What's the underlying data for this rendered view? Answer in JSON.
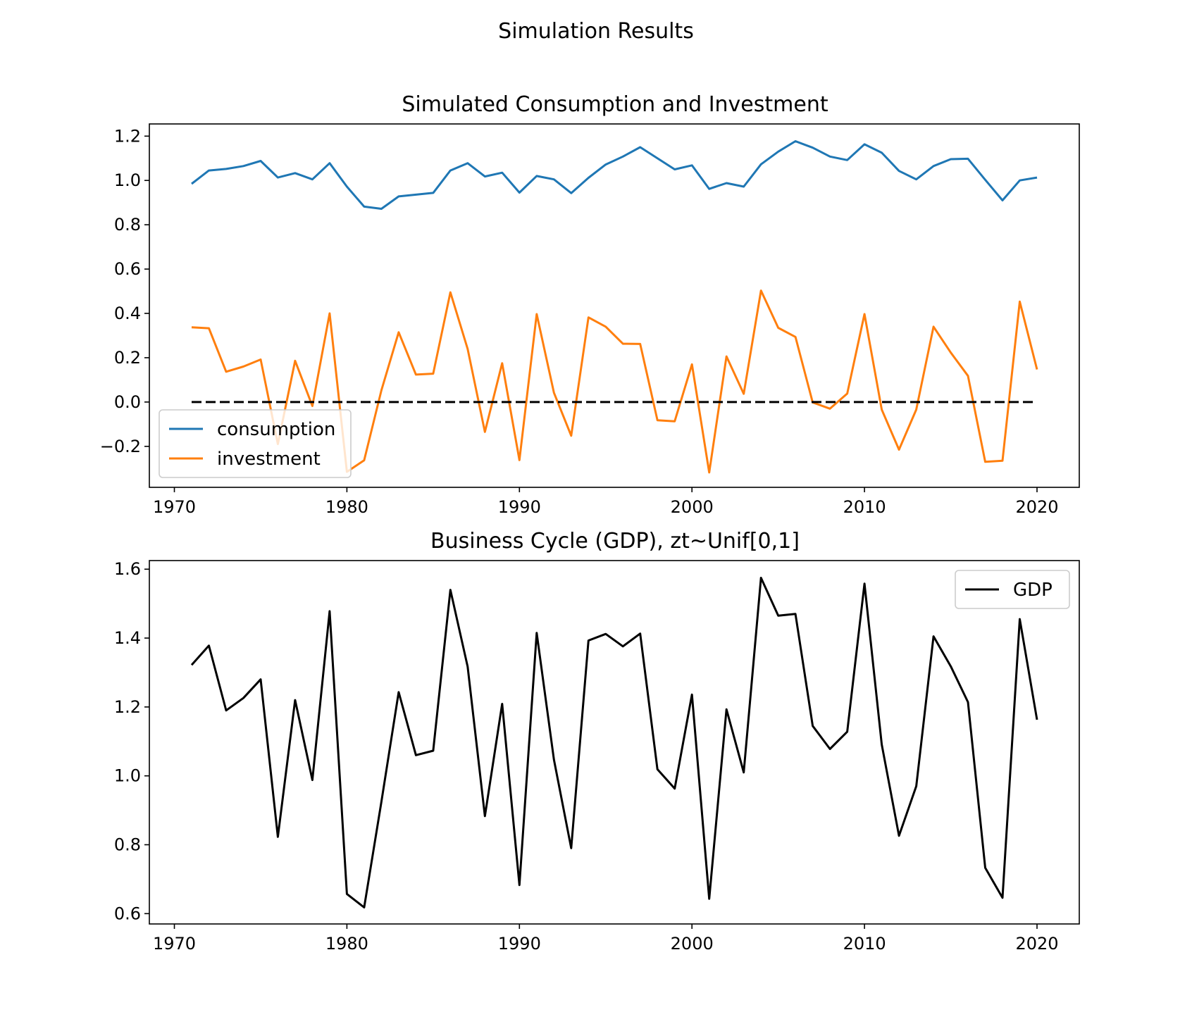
{
  "figure": {
    "suptitle": "Simulation Results"
  },
  "chart_data": [
    {
      "type": "line",
      "title": "Simulated Consumption and Investment",
      "xlabel": "",
      "ylabel": "",
      "x": [
        1971,
        1972,
        1973,
        1974,
        1975,
        1976,
        1977,
        1978,
        1979,
        1980,
        1981,
        1982,
        1983,
        1984,
        1985,
        1986,
        1987,
        1988,
        1989,
        1990,
        1991,
        1992,
        1993,
        1994,
        1995,
        1996,
        1997,
        1998,
        1999,
        2000,
        2001,
        2002,
        2003,
        2004,
        2005,
        2006,
        2007,
        2008,
        2009,
        2010,
        2011,
        2012,
        2013,
        2014,
        2015,
        2016,
        2017,
        2018,
        2019,
        2020
      ],
      "xlim": [
        1968.55,
        2022.45
      ],
      "ylim": [
        -0.385,
        1.255
      ],
      "xticks": [
        1970,
        1980,
        1990,
        2000,
        2010,
        2020
      ],
      "xtick_labels": [
        "1970",
        "1980",
        "1990",
        "2000",
        "2010",
        "2020"
      ],
      "yticks": [
        -0.2,
        0.0,
        0.2,
        0.4,
        0.6,
        0.8,
        1.0,
        1.2
      ],
      "ytick_labels": [
        "−0.2",
        "0.0",
        "0.2",
        "0.4",
        "0.6",
        "0.8",
        "1.0",
        "1.2"
      ],
      "grid": false,
      "legend_position": "lower-left",
      "series": [
        {
          "name": "consumption",
          "color": "#1f77b4",
          "style": "solid",
          "values": [
            0.985,
            1.045,
            1.052,
            1.065,
            1.088,
            1.013,
            1.033,
            1.005,
            1.078,
            0.972,
            0.882,
            0.872,
            0.928,
            0.936,
            0.944,
            1.045,
            1.078,
            1.018,
            1.035,
            0.945,
            1.02,
            1.005,
            0.943,
            1.012,
            1.072,
            1.108,
            1.15,
            1.1,
            1.05,
            1.068,
            0.962,
            0.988,
            0.972,
            1.073,
            1.13,
            1.177,
            1.148,
            1.108,
            1.092,
            1.163,
            1.125,
            1.043,
            1.005,
            1.065,
            1.096,
            1.098,
            1.003,
            0.91,
            1.0,
            1.013
          ]
        },
        {
          "name": "investment",
          "color": "#ff7f0e",
          "style": "solid",
          "values": [
            0.337,
            0.333,
            0.137,
            0.16,
            0.192,
            -0.19,
            0.186,
            -0.018,
            0.4,
            -0.315,
            -0.263,
            0.053,
            0.315,
            0.124,
            0.128,
            0.495,
            0.24,
            -0.135,
            0.175,
            -0.262,
            0.397,
            0.042,
            -0.152,
            0.382,
            0.34,
            0.263,
            0.262,
            -0.082,
            -0.087,
            0.17,
            -0.318,
            0.206,
            0.037,
            0.503,
            0.335,
            0.294,
            -0.002,
            -0.03,
            0.038,
            0.397,
            -0.034,
            -0.215,
            -0.034,
            0.34,
            0.223,
            0.118,
            -0.27,
            -0.265,
            0.453,
            0.147
          ]
        },
        {
          "name": "",
          "color": "#000000",
          "style": "dashed",
          "values": [
            0,
            0,
            0,
            0,
            0,
            0,
            0,
            0,
            0,
            0,
            0,
            0,
            0,
            0,
            0,
            0,
            0,
            0,
            0,
            0,
            0,
            0,
            0,
            0,
            0,
            0,
            0,
            0,
            0,
            0,
            0,
            0,
            0,
            0,
            0,
            0,
            0,
            0,
            0,
            0,
            0,
            0,
            0,
            0,
            0,
            0,
            0,
            0,
            0,
            0
          ]
        }
      ]
    },
    {
      "type": "line",
      "title": "Business Cycle (GDP), zt~Unif[0,1]",
      "xlabel": "",
      "ylabel": "",
      "x": [
        1971,
        1972,
        1973,
        1974,
        1975,
        1976,
        1977,
        1978,
        1979,
        1980,
        1981,
        1982,
        1983,
        1984,
        1985,
        1986,
        1987,
        1988,
        1989,
        1990,
        1991,
        1992,
        1993,
        1994,
        1995,
        1996,
        1997,
        1998,
        1999,
        2000,
        2001,
        2002,
        2003,
        2004,
        2005,
        2006,
        2007,
        2008,
        2009,
        2010,
        2011,
        2012,
        2013,
        2014,
        2015,
        2016,
        2017,
        2018,
        2019,
        2020
      ],
      "xlim": [
        1968.55,
        2022.45
      ],
      "ylim": [
        0.57,
        1.625
      ],
      "xticks": [
        1970,
        1980,
        1990,
        2000,
        2010,
        2020
      ],
      "xtick_labels": [
        "1970",
        "1980",
        "1990",
        "2000",
        "2010",
        "2020"
      ],
      "yticks": [
        0.6,
        0.8,
        1.0,
        1.2,
        1.4,
        1.6
      ],
      "ytick_labels": [
        "0.6",
        "0.8",
        "1.0",
        "1.2",
        "1.4",
        "1.6"
      ],
      "grid": false,
      "legend_position": "upper-right",
      "series": [
        {
          "name": "GDP",
          "color": "#000000",
          "style": "solid",
          "values": [
            1.322,
            1.378,
            1.19,
            1.226,
            1.28,
            0.823,
            1.22,
            0.988,
            1.478,
            0.657,
            0.618,
            0.925,
            1.243,
            1.06,
            1.073,
            1.54,
            1.317,
            0.883,
            1.209,
            0.683,
            1.415,
            1.047,
            0.79,
            1.393,
            1.412,
            1.376,
            1.413,
            1.019,
            0.963,
            1.236,
            0.643,
            1.193,
            1.01,
            1.575,
            1.465,
            1.47,
            1.145,
            1.078,
            1.128,
            1.558,
            1.091,
            0.826,
            0.97,
            1.405,
            1.318,
            1.214,
            0.733,
            0.646,
            1.455,
            1.163
          ]
        }
      ]
    }
  ]
}
